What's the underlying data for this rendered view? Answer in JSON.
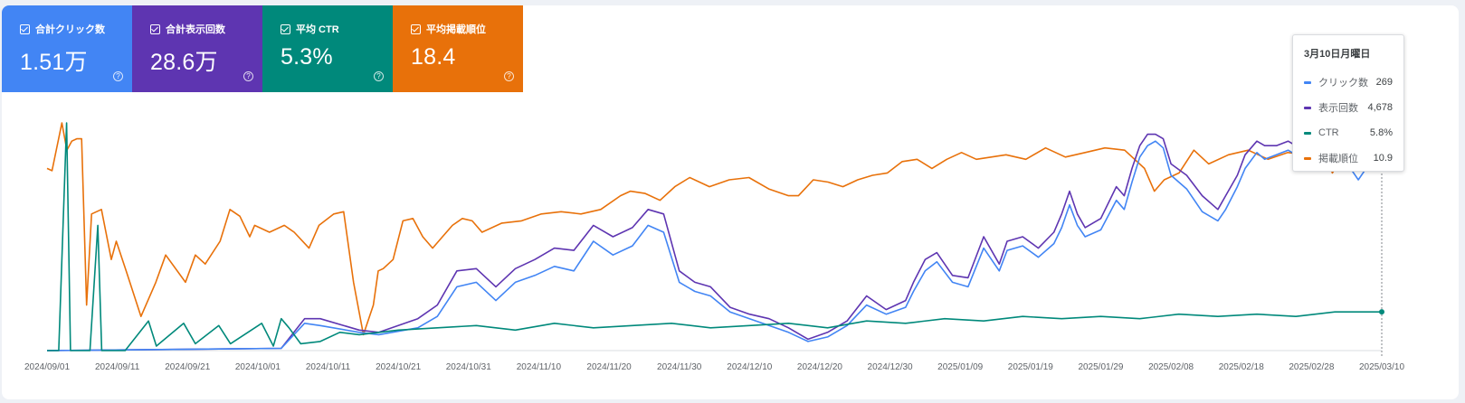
{
  "cards": [
    {
      "label": "合計クリック数",
      "value": "1.51万",
      "color": "#4285f4"
    },
    {
      "label": "合計表示回数",
      "value": "28.6万",
      "color": "#5e35b1"
    },
    {
      "label": "平均 CTR",
      "value": "5.3%",
      "color": "#00897b"
    },
    {
      "label": "平均掲載順位",
      "value": "18.4",
      "color": "#e8710a"
    }
  ],
  "tooltip": {
    "date": "3月10日月曜日",
    "rows": [
      {
        "name": "クリック数",
        "value": "269",
        "color": "#4285f4"
      },
      {
        "name": "表示回数",
        "value": "4,678",
        "color": "#5e35b1"
      },
      {
        "name": "CTR",
        "value": "5.8%",
        "color": "#00897b"
      },
      {
        "name": "掲載順位",
        "value": "10.9",
        "color": "#e8710a"
      }
    ]
  },
  "chart_data": {
    "type": "line",
    "title": "",
    "xlabel": "",
    "ylabel": "",
    "x_ticks": [
      "2024/09/01",
      "2024/09/11",
      "2024/09/21",
      "2024/10/01",
      "2024/10/11",
      "2024/10/21",
      "2024/10/31",
      "2024/11/10",
      "2024/11/20",
      "2024/11/30",
      "2024/12/10",
      "2024/12/20",
      "2024/12/30",
      "2025/01/09",
      "2025/01/19",
      "2025/01/29",
      "2025/02/08",
      "2025/02/18",
      "2025/02/28",
      "2025/03/10"
    ],
    "y_axes": "independent per series (values normalized 0-100 of each series' display range)",
    "grid": false,
    "legend": "none",
    "series": [
      {
        "name": "掲載順位",
        "color": "#e8710a",
        "keypoints": [
          [
            0,
            80
          ],
          [
            1,
            79
          ],
          [
            3,
            100
          ],
          [
            4,
            88
          ],
          [
            5,
            92
          ],
          [
            6,
            93
          ],
          [
            7,
            93
          ],
          [
            8,
            20
          ],
          [
            9,
            60
          ],
          [
            11,
            62
          ],
          [
            13,
            40
          ],
          [
            14,
            48
          ],
          [
            16,
            35
          ],
          [
            19,
            15
          ],
          [
            22,
            30
          ],
          [
            24,
            42
          ],
          [
            28,
            30
          ],
          [
            30,
            42
          ],
          [
            32,
            38
          ],
          [
            35,
            48
          ],
          [
            37,
            62
          ],
          [
            39,
            59
          ],
          [
            41,
            50
          ],
          [
            42,
            55
          ],
          [
            45,
            52
          ],
          [
            48,
            55
          ],
          [
            50,
            52
          ],
          [
            53,
            45
          ],
          [
            55,
            55
          ],
          [
            58,
            60
          ],
          [
            60,
            61
          ],
          [
            62,
            30
          ],
          [
            64,
            7
          ],
          [
            66,
            20
          ],
          [
            67,
            35
          ],
          [
            68,
            36
          ],
          [
            70,
            40
          ],
          [
            72,
            57
          ],
          [
            74,
            58
          ],
          [
            76,
            50
          ],
          [
            78,
            45
          ],
          [
            80,
            50
          ],
          [
            82,
            55
          ],
          [
            84,
            58
          ],
          [
            86,
            57
          ],
          [
            88,
            52
          ],
          [
            92,
            56
          ],
          [
            96,
            57
          ],
          [
            100,
            60
          ],
          [
            104,
            61
          ],
          [
            108,
            60
          ],
          [
            112,
            62
          ],
          [
            116,
            68
          ],
          [
            118,
            70
          ],
          [
            121,
            69
          ],
          [
            124,
            66
          ],
          [
            127,
            72
          ],
          [
            130,
            76
          ],
          [
            134,
            72
          ],
          [
            138,
            75
          ],
          [
            142,
            76
          ],
          [
            146,
            71
          ],
          [
            150,
            68
          ],
          [
            152,
            68
          ],
          [
            155,
            75
          ],
          [
            158,
            74
          ],
          [
            161,
            72
          ],
          [
            164,
            75
          ],
          [
            167,
            77
          ],
          [
            170,
            78
          ],
          [
            173,
            83
          ],
          [
            176,
            84
          ],
          [
            179,
            80
          ],
          [
            182,
            84
          ],
          [
            185,
            87
          ],
          [
            188,
            84
          ],
          [
            191,
            85
          ],
          [
            194,
            86
          ],
          [
            198,
            84
          ],
          [
            202,
            89
          ],
          [
            206,
            85
          ],
          [
            210,
            87
          ],
          [
            214,
            89
          ],
          [
            218,
            88
          ],
          [
            222,
            80
          ],
          [
            224,
            70
          ],
          [
            226,
            75
          ],
          [
            229,
            78
          ],
          [
            232,
            88
          ],
          [
            235,
            82
          ],
          [
            239,
            86
          ],
          [
            243,
            88
          ],
          [
            247,
            84
          ],
          [
            251,
            87
          ],
          [
            255,
            86
          ],
          [
            258,
            93
          ],
          [
            260,
            78
          ],
          [
            262,
            85
          ],
          [
            264,
            80
          ],
          [
            267,
            85
          ],
          [
            270,
            88
          ]
        ]
      },
      {
        "name": "表示回数",
        "color": "#5e35b1",
        "keypoints": [
          [
            0,
            0
          ],
          [
            60,
            1
          ],
          [
            66,
            14
          ],
          [
            70,
            14
          ],
          [
            80,
            9
          ],
          [
            85,
            8
          ],
          [
            95,
            14
          ],
          [
            100,
            20
          ],
          [
            105,
            35
          ],
          [
            110,
            36
          ],
          [
            115,
            28
          ],
          [
            120,
            36
          ],
          [
            125,
            40
          ],
          [
            130,
            45
          ],
          [
            135,
            44
          ],
          [
            140,
            55
          ],
          [
            145,
            50
          ],
          [
            150,
            54
          ],
          [
            154,
            62
          ],
          [
            158,
            60
          ],
          [
            162,
            35
          ],
          [
            166,
            30
          ],
          [
            170,
            28
          ],
          [
            175,
            19
          ],
          [
            180,
            16
          ],
          [
            185,
            14
          ],
          [
            190,
            10
          ],
          [
            195,
            5
          ],
          [
            200,
            8
          ],
          [
            205,
            13
          ],
          [
            210,
            24
          ],
          [
            215,
            18
          ],
          [
            220,
            22
          ],
          [
            222,
            30
          ],
          [
            225,
            40
          ],
          [
            228,
            43
          ],
          [
            232,
            33
          ],
          [
            236,
            32
          ],
          [
            240,
            50
          ],
          [
            244,
            38
          ],
          [
            246,
            48
          ],
          [
            250,
            50
          ],
          [
            254,
            45
          ],
          [
            258,
            52
          ],
          [
            260,
            60
          ],
          [
            262,
            70
          ],
          [
            264,
            60
          ],
          [
            266,
            54
          ],
          [
            270,
            58
          ],
          [
            274,
            72
          ],
          [
            276,
            68
          ],
          [
            278,
            80
          ],
          [
            280,
            90
          ],
          [
            282,
            95
          ],
          [
            284,
            95
          ],
          [
            286,
            93
          ],
          [
            288,
            82
          ],
          [
            292,
            77
          ],
          [
            296,
            68
          ],
          [
            300,
            62
          ],
          [
            302,
            68
          ],
          [
            305,
            77
          ],
          [
            307,
            86
          ],
          [
            310,
            92
          ],
          [
            312,
            90
          ],
          [
            315,
            90
          ],
          [
            318,
            92
          ],
          [
            320,
            90
          ],
          [
            322,
            93
          ],
          [
            324,
            95
          ],
          [
            326,
            94
          ],
          [
            328,
            96
          ],
          [
            330,
            98
          ],
          [
            332,
            94
          ],
          [
            334,
            85
          ],
          [
            336,
            80
          ],
          [
            338,
            84
          ],
          [
            340,
            88
          ],
          [
            342,
            92
          ]
        ]
      },
      {
        "name": "クリック数",
        "color": "#4285f4",
        "keypoints": [
          [
            0,
            0
          ],
          [
            60,
            1
          ],
          [
            66,
            12
          ],
          [
            70,
            11
          ],
          [
            80,
            8
          ],
          [
            85,
            7
          ],
          [
            95,
            10
          ],
          [
            100,
            15
          ],
          [
            105,
            28
          ],
          [
            110,
            30
          ],
          [
            115,
            22
          ],
          [
            120,
            30
          ],
          [
            125,
            33
          ],
          [
            130,
            37
          ],
          [
            135,
            35
          ],
          [
            140,
            48
          ],
          [
            145,
            42
          ],
          [
            150,
            46
          ],
          [
            154,
            55
          ],
          [
            158,
            52
          ],
          [
            162,
            30
          ],
          [
            166,
            26
          ],
          [
            170,
            24
          ],
          [
            175,
            17
          ],
          [
            180,
            14
          ],
          [
            185,
            11
          ],
          [
            190,
            8
          ],
          [
            195,
            4
          ],
          [
            200,
            6
          ],
          [
            205,
            11
          ],
          [
            210,
            20
          ],
          [
            215,
            16
          ],
          [
            220,
            19
          ],
          [
            222,
            26
          ],
          [
            225,
            35
          ],
          [
            228,
            39
          ],
          [
            232,
            30
          ],
          [
            236,
            28
          ],
          [
            240,
            45
          ],
          [
            244,
            35
          ],
          [
            246,
            44
          ],
          [
            250,
            46
          ],
          [
            254,
            41
          ],
          [
            258,
            47
          ],
          [
            260,
            54
          ],
          [
            262,
            64
          ],
          [
            264,
            55
          ],
          [
            266,
            50
          ],
          [
            270,
            53
          ],
          [
            274,
            66
          ],
          [
            276,
            62
          ],
          [
            278,
            74
          ],
          [
            280,
            85
          ],
          [
            282,
            90
          ],
          [
            284,
            92
          ],
          [
            286,
            89
          ],
          [
            288,
            77
          ],
          [
            292,
            71
          ],
          [
            296,
            61
          ],
          [
            300,
            57
          ],
          [
            302,
            62
          ],
          [
            305,
            72
          ],
          [
            307,
            80
          ],
          [
            310,
            87
          ],
          [
            312,
            84
          ],
          [
            315,
            86
          ],
          [
            318,
            88
          ],
          [
            320,
            86
          ],
          [
            322,
            90
          ],
          [
            324,
            93
          ],
          [
            326,
            92
          ],
          [
            328,
            94
          ],
          [
            330,
            96
          ],
          [
            332,
            90
          ],
          [
            334,
            80
          ],
          [
            336,
            75
          ],
          [
            338,
            80
          ],
          [
            340,
            84
          ],
          [
            342,
            88
          ]
        ]
      },
      {
        "name": "CTR",
        "color": "#00897b",
        "keypoints": [
          [
            0,
            0
          ],
          [
            3,
            0
          ],
          [
            5,
            100
          ],
          [
            6,
            0
          ],
          [
            11,
            0
          ],
          [
            13,
            55
          ],
          [
            14,
            0
          ],
          [
            20,
            0
          ],
          [
            26,
            13
          ],
          [
            28,
            2
          ],
          [
            35,
            12
          ],
          [
            38,
            3
          ],
          [
            44,
            11
          ],
          [
            47,
            3
          ],
          [
            55,
            12
          ],
          [
            58,
            2
          ],
          [
            60,
            14
          ],
          [
            62,
            10
          ],
          [
            65,
            3
          ],
          [
            70,
            4
          ],
          [
            75,
            8
          ],
          [
            80,
            7
          ],
          [
            90,
            9
          ],
          [
            100,
            10
          ],
          [
            110,
            11
          ],
          [
            120,
            9
          ],
          [
            130,
            12
          ],
          [
            140,
            10
          ],
          [
            150,
            11
          ],
          [
            160,
            12
          ],
          [
            170,
            10
          ],
          [
            180,
            11
          ],
          [
            190,
            12
          ],
          [
            200,
            10
          ],
          [
            210,
            13
          ],
          [
            220,
            12
          ],
          [
            230,
            14
          ],
          [
            240,
            13
          ],
          [
            250,
            15
          ],
          [
            260,
            14
          ],
          [
            270,
            15
          ],
          [
            280,
            14
          ],
          [
            290,
            16
          ],
          [
            300,
            15
          ],
          [
            310,
            16
          ],
          [
            320,
            15
          ],
          [
            330,
            17
          ],
          [
            342,
            17
          ]
        ]
      }
    ]
  }
}
